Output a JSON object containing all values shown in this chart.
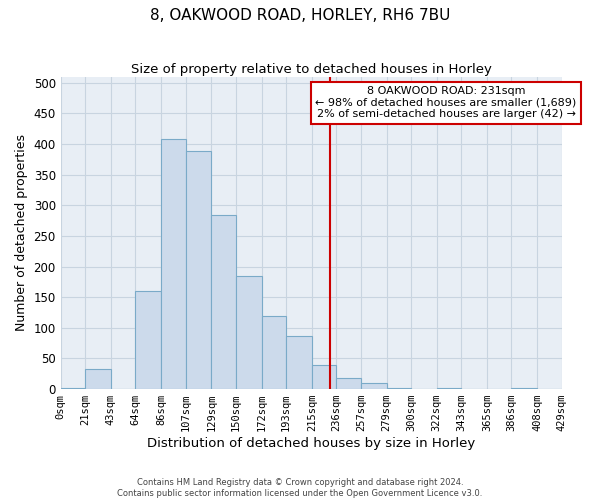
{
  "title": "8, OAKWOOD ROAD, HORLEY, RH6 7BU",
  "subtitle": "Size of property relative to detached houses in Horley",
  "xlabel": "Distribution of detached houses by size in Horley",
  "ylabel": "Number of detached properties",
  "bin_edges": [
    0,
    21,
    43,
    64,
    86,
    107,
    129,
    150,
    172,
    193,
    215,
    236,
    257,
    279,
    300,
    322,
    343,
    365,
    386,
    408,
    429
  ],
  "bar_heights": [
    2,
    33,
    0,
    160,
    408,
    388,
    284,
    184,
    119,
    86,
    40,
    18,
    10,
    2,
    0,
    1,
    0,
    0,
    2,
    0
  ],
  "bar_color": "#ccdaeb",
  "bar_edge_color": "#7aaac8",
  "tick_labels": [
    "0sqm",
    "21sqm",
    "43sqm",
    "64sqm",
    "86sqm",
    "107sqm",
    "129sqm",
    "150sqm",
    "172sqm",
    "193sqm",
    "215sqm",
    "236sqm",
    "257sqm",
    "279sqm",
    "300sqm",
    "322sqm",
    "343sqm",
    "365sqm",
    "386sqm",
    "408sqm",
    "429sqm"
  ],
  "vline_x": 231,
  "vline_color": "#cc0000",
  "annotation_title": "8 OAKWOOD ROAD: 231sqm",
  "annotation_line1": "← 98% of detached houses are smaller (1,689)",
  "annotation_line2": "2% of semi-detached houses are larger (42) →",
  "annotation_box_color": "#cc0000",
  "ylim": [
    0,
    510
  ],
  "yticks": [
    0,
    50,
    100,
    150,
    200,
    250,
    300,
    350,
    400,
    450,
    500
  ],
  "background_color": "#ffffff",
  "plot_bg_color": "#e8eef5",
  "grid_color": "#c8d4e0",
  "footer_line1": "Contains HM Land Registry data © Crown copyright and database right 2024.",
  "footer_line2": "Contains public sector information licensed under the Open Government Licence v3.0."
}
